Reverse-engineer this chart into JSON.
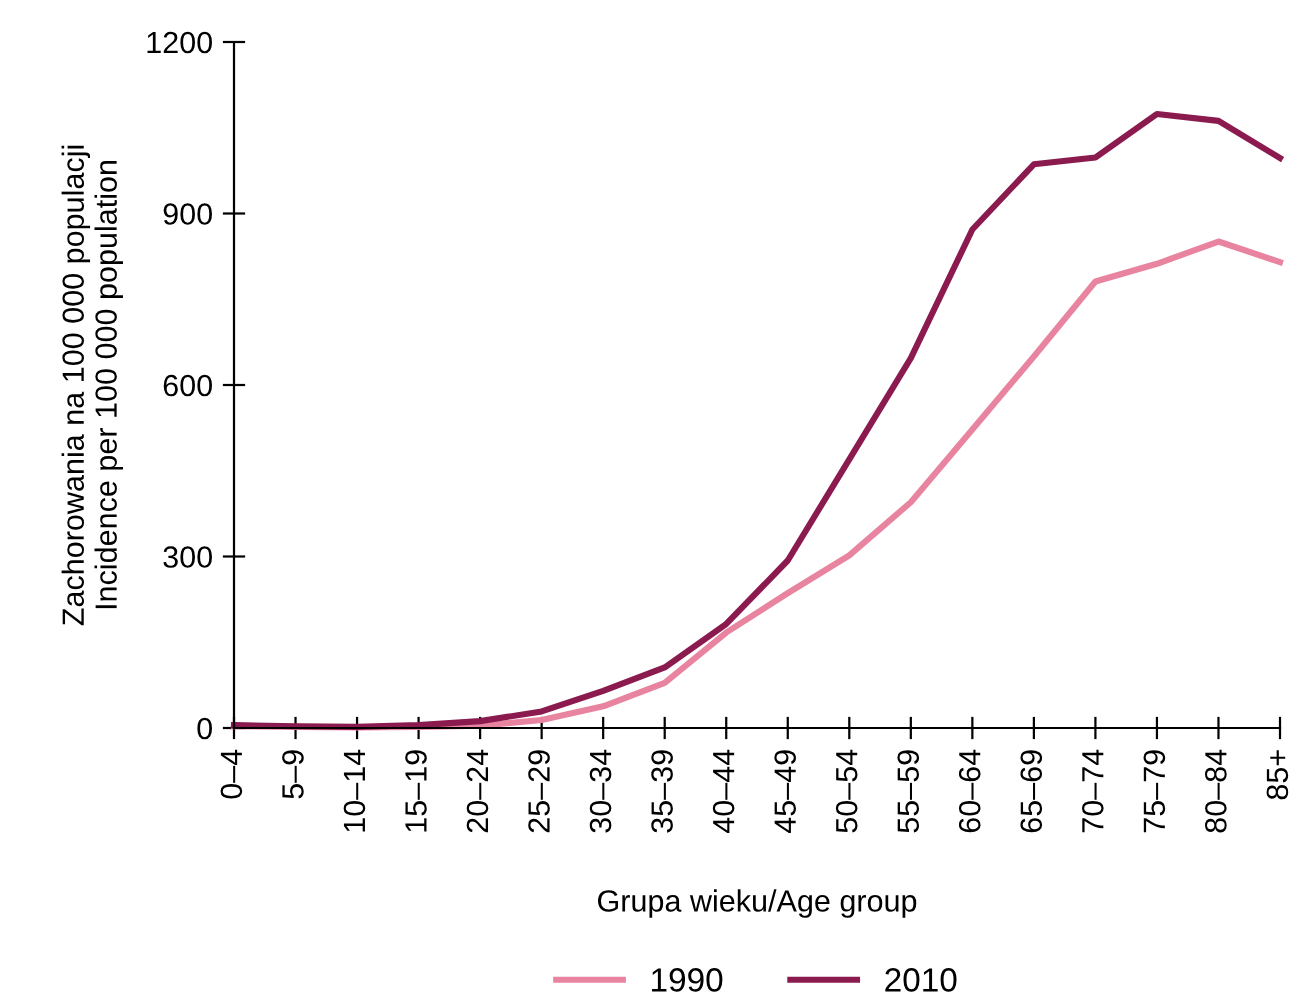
{
  "chart_data": {
    "type": "line",
    "xlabel": "Grupa wieku/Age group",
    "ylabel": "Zachorowania na 100 000 populacji\nIncidence per 100 000 population",
    "categories": [
      "0–4",
      "5–9",
      "10–14",
      "15–19",
      "20–24",
      "25–29",
      "30–34",
      "35–39",
      "40–44",
      "45–49",
      "50–54",
      "55–59",
      "60–64",
      "65–69",
      "70–74",
      "75–79",
      "80–84",
      "85+"
    ],
    "series": [
      {
        "name": "1990",
        "color": "#e8849f",
        "values": [
          3,
          2,
          1,
          2,
          4,
          14,
          38,
          79,
          167,
          236,
          302,
          395,
          522,
          650,
          781,
          812,
          851,
          815
        ]
      },
      {
        "name": "2010",
        "color": "#8b1a4f",
        "values": [
          5,
          3,
          2,
          5,
          12,
          29,
          65,
          106,
          182,
          293,
          470,
          647,
          872,
          986,
          998,
          1074,
          1062,
          997
        ]
      }
    ],
    "ylim": [
      0,
      1200
    ],
    "yticks": [
      0,
      300,
      600,
      900,
      1200
    ],
    "grid": false,
    "legend": "bottom",
    "marker": "none",
    "line_style": "solid"
  }
}
